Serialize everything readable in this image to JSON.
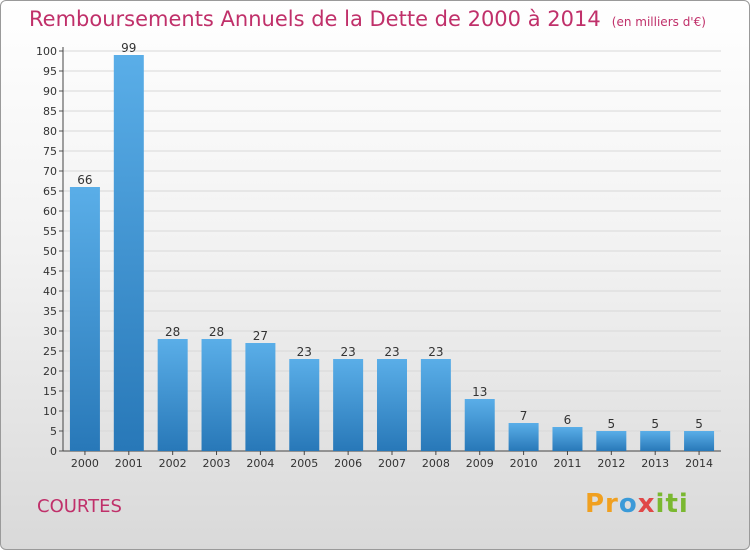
{
  "title": "Remboursements Annuels de la Dette de 2000 à 2014",
  "unit": "(en milliers d'€)",
  "commune": "COURTES",
  "brand": {
    "part1": "Pr",
    "part2": "o",
    "part3": "x",
    "part4": "iti"
  },
  "colors": {
    "title": "#c0306a",
    "bar_top": "#5aaee8",
    "bar_bottom": "#2878b8",
    "grid": "#d8d8d8"
  },
  "chart_data": {
    "type": "bar",
    "categories": [
      "2000",
      "2001",
      "2002",
      "2003",
      "2004",
      "2005",
      "2006",
      "2007",
      "2008",
      "2009",
      "2010",
      "2011",
      "2012",
      "2013",
      "2014"
    ],
    "values": [
      66,
      99,
      28,
      28,
      27,
      23,
      23,
      23,
      23,
      13,
      7,
      6,
      5,
      5,
      5
    ],
    "title": "Remboursements Annuels de la Dette de 2000 à 2014",
    "xlabel": "",
    "ylabel": "",
    "ylim": [
      0,
      100
    ],
    "yticks": [
      0,
      5,
      10,
      15,
      20,
      25,
      30,
      35,
      40,
      45,
      50,
      55,
      60,
      65,
      70,
      75,
      80,
      85,
      90,
      95,
      100
    ],
    "grid": true
  }
}
